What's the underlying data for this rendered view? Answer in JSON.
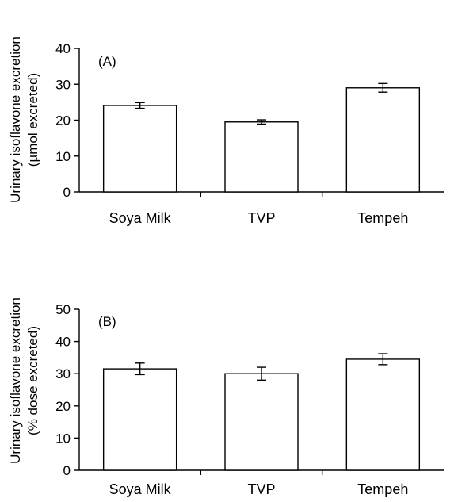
{
  "chart_data": [
    {
      "type": "bar",
      "panel_label": "(A)",
      "categories": [
        "Soya Milk",
        "TVP",
        "Tempeh"
      ],
      "values": [
        24.1,
        19.5,
        29.0
      ],
      "errors": [
        0.8,
        0.6,
        1.2
      ],
      "ylabel_line1": "Urinary isoflavone excretion",
      "ylabel_line2": "(µmol excreted)",
      "ylim": [
        0,
        40
      ],
      "yticks": [
        0,
        10,
        20,
        30,
        40
      ],
      "grid": false
    },
    {
      "type": "bar",
      "panel_label": "(B)",
      "categories": [
        "Soya Milk",
        "TVP",
        "Tempeh"
      ],
      "values": [
        31.5,
        30.0,
        34.5
      ],
      "errors": [
        1.8,
        2.0,
        1.7
      ],
      "ylabel_line1": "Urinary isoflavone excretion",
      "ylabel_line2": "(% dose excreted)",
      "ylim": [
        0,
        50
      ],
      "yticks": [
        0,
        10,
        20,
        30,
        40,
        50
      ],
      "grid": false
    }
  ]
}
